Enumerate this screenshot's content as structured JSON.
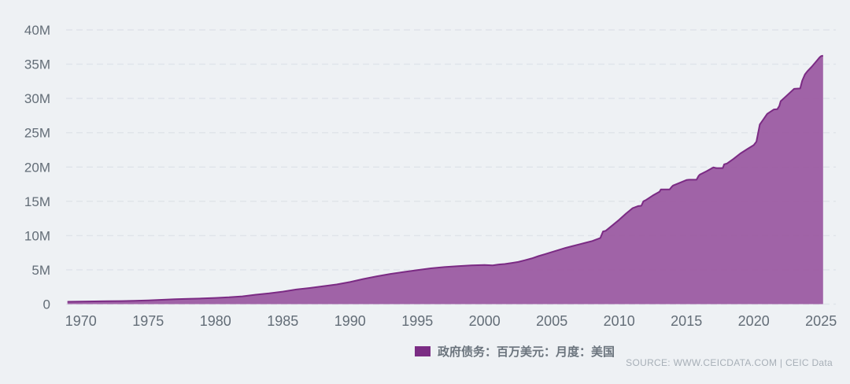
{
  "colors": {
    "background": "#eef1f4",
    "area_fill": "#9a58a0",
    "area_stroke": "#7b2b84",
    "legend_swatch": "#7b2d84",
    "gridline": "#dfe3e9",
    "axis_label": "#636d77",
    "legend_text": "#6b747d",
    "source_text": "#a7afb7"
  },
  "footer": {
    "source": "SOURCE: WWW.CEICDATA.COM | CEIC Data"
  },
  "chart_data": {
    "type": "area",
    "title": "",
    "xlabel": "",
    "ylabel": "",
    "legend": "政府债务：百万美元：月度：美国",
    "legend_position": "bottom-center",
    "grid": "horizontal-dashed",
    "x_range": [
      1968.9,
      2026.1
    ],
    "y_range": [
      0,
      40
    ],
    "x_ticks": [
      1970,
      1975,
      1980,
      1985,
      1990,
      1995,
      2000,
      2005,
      2010,
      2015,
      2020,
      2025
    ],
    "x_tick_labels": [
      "1970",
      "1975",
      "1980",
      "1985",
      "1990",
      "1995",
      "2000",
      "2005",
      "2010",
      "2015",
      "2020",
      "2025"
    ],
    "y_ticks": [
      0,
      5,
      10,
      15,
      20,
      25,
      30,
      35,
      40
    ],
    "y_tick_labels": [
      "0",
      "5M",
      "10M",
      "15M",
      "20M",
      "25M",
      "30M",
      "35M",
      "40M"
    ],
    "series": [
      {
        "name": "政府债务：百万美元：月度：美国",
        "unit": "百万美元 (M = million millions USD)",
        "points": [
          [
            1969,
            0.35
          ],
          [
            1970,
            0.37
          ],
          [
            1971,
            0.4
          ],
          [
            1972,
            0.42
          ],
          [
            1973,
            0.45
          ],
          [
            1974,
            0.48
          ],
          [
            1975,
            0.54
          ],
          [
            1976,
            0.63
          ],
          [
            1977,
            0.71
          ],
          [
            1978,
            0.78
          ],
          [
            1979,
            0.83
          ],
          [
            1980,
            0.91
          ],
          [
            1981,
            1.0
          ],
          [
            1982,
            1.14
          ],
          [
            1983,
            1.38
          ],
          [
            1984,
            1.57
          ],
          [
            1985,
            1.82
          ],
          [
            1986,
            2.13
          ],
          [
            1987,
            2.35
          ],
          [
            1988,
            2.6
          ],
          [
            1989,
            2.87
          ],
          [
            1990,
            3.23
          ],
          [
            1991,
            3.67
          ],
          [
            1992,
            4.06
          ],
          [
            1993,
            4.41
          ],
          [
            1994,
            4.69
          ],
          [
            1995,
            4.97
          ],
          [
            1996,
            5.22
          ],
          [
            1997,
            5.41
          ],
          [
            1998,
            5.53
          ],
          [
            1999,
            5.65
          ],
          [
            2000,
            5.72
          ],
          [
            2000.6,
            5.66
          ],
          [
            2001,
            5.77
          ],
          [
            2001.5,
            5.85
          ],
          [
            2002,
            6.0
          ],
          [
            2002.5,
            6.15
          ],
          [
            2003,
            6.4
          ],
          [
            2003.5,
            6.67
          ],
          [
            2004,
            7.0
          ],
          [
            2004.5,
            7.3
          ],
          [
            2005,
            7.6
          ],
          [
            2005.5,
            7.9
          ],
          [
            2006,
            8.2
          ],
          [
            2006.5,
            8.45
          ],
          [
            2007,
            8.7
          ],
          [
            2007.5,
            8.95
          ],
          [
            2008,
            9.2
          ],
          [
            2008.6,
            9.65
          ],
          [
            2008.8,
            10.6
          ],
          [
            2009,
            10.7
          ],
          [
            2009.5,
            11.5
          ],
          [
            2010,
            12.3
          ],
          [
            2010.5,
            13.2
          ],
          [
            2011,
            14.0
          ],
          [
            2011.4,
            14.3
          ],
          [
            2011.65,
            14.35
          ],
          [
            2011.8,
            15.0
          ],
          [
            2012,
            15.2
          ],
          [
            2012.5,
            15.85
          ],
          [
            2013,
            16.4
          ],
          [
            2013.1,
            16.74
          ],
          [
            2013.75,
            16.74
          ],
          [
            2013.9,
            17.1
          ],
          [
            2014,
            17.3
          ],
          [
            2014.5,
            17.7
          ],
          [
            2015,
            18.1
          ],
          [
            2015.2,
            18.15
          ],
          [
            2015.75,
            18.15
          ],
          [
            2015.9,
            18.7
          ],
          [
            2016,
            18.9
          ],
          [
            2016.5,
            19.4
          ],
          [
            2017,
            19.95
          ],
          [
            2017.2,
            19.85
          ],
          [
            2017.7,
            19.85
          ],
          [
            2017.8,
            20.4
          ],
          [
            2018,
            20.5
          ],
          [
            2018.5,
            21.2
          ],
          [
            2019,
            21.97
          ],
          [
            2019.5,
            22.6
          ],
          [
            2020,
            23.2
          ],
          [
            2020.2,
            23.7
          ],
          [
            2020.45,
            26.2
          ],
          [
            2020.7,
            26.9
          ],
          [
            2021,
            27.75
          ],
          [
            2021.5,
            28.4
          ],
          [
            2021.75,
            28.43
          ],
          [
            2021.9,
            28.9
          ],
          [
            2022,
            29.6
          ],
          [
            2022.5,
            30.5
          ],
          [
            2023,
            31.4
          ],
          [
            2023.45,
            31.46
          ],
          [
            2023.6,
            32.6
          ],
          [
            2023.8,
            33.5
          ],
          [
            2024,
            34.0
          ],
          [
            2024.3,
            34.6
          ],
          [
            2024.6,
            35.3
          ],
          [
            2024.9,
            36.0
          ],
          [
            2025,
            36.17
          ],
          [
            2025.15,
            36.25
          ]
        ]
      }
    ]
  }
}
